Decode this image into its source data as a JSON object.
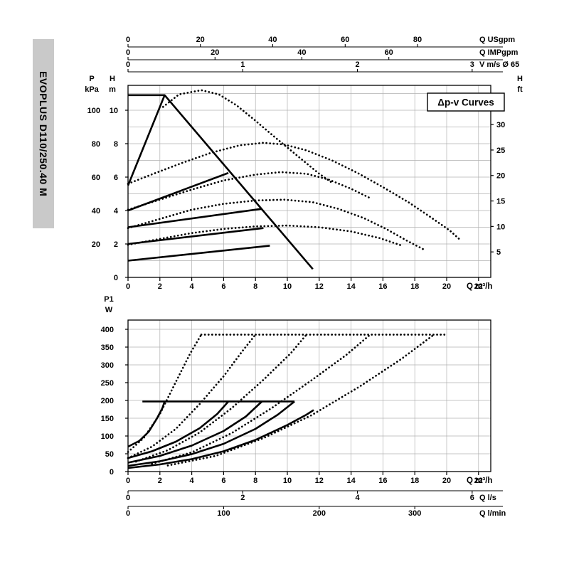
{
  "sidebar": {
    "model": "EVOPLUS D110/250.40 M"
  },
  "chart_data": [
    {
      "name": "head-flow-chart",
      "type": "line",
      "legend": {
        "label": "Δp-v Curves"
      },
      "xlim": [
        0,
        22.8
      ],
      "ylim": [
        0,
        11.5
      ],
      "grid": {
        "x_step": 2,
        "x_max": 22,
        "y_step": 1,
        "y_max": 11
      },
      "x_axis": {
        "title": "Q m³/h",
        "ticks": [
          [
            "0",
            0
          ],
          [
            "2",
            2
          ],
          [
            "4",
            4
          ],
          [
            "6",
            6
          ],
          [
            "8",
            8
          ],
          [
            "10",
            10
          ],
          [
            "12",
            12
          ],
          [
            "14",
            14
          ],
          [
            "16",
            16
          ],
          [
            "18",
            18
          ],
          [
            "20",
            20
          ],
          [
            "22",
            22
          ]
        ]
      },
      "left_axes": [
        {
          "title": [
            "P",
            "kPa"
          ],
          "ticks": [
            [
              "100",
              10
            ],
            [
              "80",
              8
            ],
            [
              "60",
              6
            ],
            [
              "40",
              4
            ],
            [
              "20",
              2
            ]
          ]
        },
        {
          "title": [
            "H",
            "m"
          ],
          "ticks": [
            [
              "10",
              10
            ],
            [
              "8",
              8
            ],
            [
              "6",
              6
            ],
            [
              "4",
              4
            ],
            [
              "2",
              2
            ],
            [
              "0",
              0
            ]
          ]
        }
      ],
      "right_axes": [
        {
          "title": [
            "H",
            "ft"
          ],
          "ticks": [
            [
              "30",
              9.144
            ],
            [
              "25",
              7.62
            ],
            [
              "20",
              6.096
            ],
            [
              "15",
              4.572
            ],
            [
              "10",
              3.048
            ],
            [
              "5",
              1.524
            ]
          ]
        }
      ],
      "aux_axes": [
        {
          "title": "Q USgpm",
          "ticks": [
            [
              "0",
              0
            ],
            [
              "20",
              4.54
            ],
            [
              "40",
              9.08
            ],
            [
              "60",
              13.63
            ],
            [
              "80",
              18.17
            ]
          ]
        },
        {
          "title": "Q IMPgpm",
          "ticks": [
            [
              "0",
              0
            ],
            [
              "20",
              5.46
            ],
            [
              "40",
              10.91
            ],
            [
              "60",
              16.37
            ]
          ]
        },
        {
          "title": "V m/s Ø 65",
          "ticks": [
            [
              "0",
              0
            ],
            [
              "1",
              7.2
            ],
            [
              "2",
              14.4
            ],
            [
              "3",
              21.6
            ]
          ]
        }
      ],
      "series": [
        {
          "name": "max-speed-curve",
          "style": "solid",
          "points": [
            [
              0,
              10.9
            ],
            [
              2.3,
              10.9
            ],
            [
              11.6,
              0.5
            ]
          ]
        },
        {
          "name": "dpv-setpoint-line-5",
          "style": "solid",
          "points": [
            [
              0,
              5.5
            ],
            [
              2.3,
              10.9
            ]
          ]
        },
        {
          "name": "dpv-setpoint-line-4",
          "style": "solid",
          "points": [
            [
              0,
              4.0
            ],
            [
              6.3,
              6.25
            ]
          ]
        },
        {
          "name": "dpv-setpoint-line-3",
          "style": "solid",
          "points": [
            [
              0,
              3.0
            ],
            [
              8.4,
              4.1
            ]
          ]
        },
        {
          "name": "dpv-setpoint-line-2",
          "style": "solid",
          "points": [
            [
              0,
              2.0
            ],
            [
              8.5,
              2.95
            ]
          ]
        },
        {
          "name": "dpv-setpoint-line-1",
          "style": "solid",
          "points": [
            [
              0,
              1.0
            ],
            [
              8.9,
              1.9
            ]
          ]
        },
        {
          "name": "speed-curve-dotted-1",
          "style": "dotted",
          "points": [
            [
              2.2,
              10.2
            ],
            [
              3.2,
              10.95
            ],
            [
              4.6,
              11.2
            ],
            [
              5.7,
              10.95
            ],
            [
              6.8,
              10.3
            ],
            [
              7.9,
              9.45
            ],
            [
              9.2,
              8.4
            ],
            [
              10.6,
              7.3
            ],
            [
              12.0,
              6.2
            ],
            [
              12.9,
              5.6
            ]
          ]
        },
        {
          "name": "speed-curve-dotted-2",
          "style": "dotted",
          "points": [
            [
              0,
              5.6
            ],
            [
              1.6,
              6.2
            ],
            [
              3.4,
              6.85
            ],
            [
              5.2,
              7.45
            ],
            [
              7.0,
              7.9
            ],
            [
              8.5,
              8.05
            ],
            [
              9.8,
              7.95
            ],
            [
              11.2,
              7.6
            ],
            [
              12.8,
              7.0
            ],
            [
              14.4,
              6.25
            ],
            [
              16.0,
              5.4
            ],
            [
              17.6,
              4.5
            ],
            [
              19.0,
              3.6
            ],
            [
              20.2,
              2.8
            ],
            [
              20.9,
              2.2
            ]
          ]
        },
        {
          "name": "speed-curve-dotted-3",
          "style": "dotted",
          "points": [
            [
              0,
              4.05
            ],
            [
              2,
              4.65
            ],
            [
              4,
              5.25
            ],
            [
              6,
              5.8
            ],
            [
              8,
              6.15
            ],
            [
              9.6,
              6.3
            ],
            [
              11.2,
              6.2
            ],
            [
              12.6,
              5.85
            ],
            [
              14.0,
              5.3
            ],
            [
              15.3,
              4.7
            ]
          ]
        },
        {
          "name": "speed-curve-dotted-4",
          "style": "dotted",
          "points": [
            [
              0,
              2.95
            ],
            [
              2,
              3.5
            ],
            [
              4,
              4.05
            ],
            [
              6,
              4.4
            ],
            [
              8,
              4.6
            ],
            [
              9.8,
              4.65
            ],
            [
              11.6,
              4.5
            ],
            [
              13.2,
              4.1
            ],
            [
              14.8,
              3.55
            ],
            [
              16.2,
              2.9
            ],
            [
              17.5,
              2.2
            ],
            [
              18.6,
              1.65
            ]
          ]
        },
        {
          "name": "speed-curve-dotted-5",
          "style": "dotted",
          "points": [
            [
              0,
              1.95
            ],
            [
              2,
              2.3
            ],
            [
              4,
              2.65
            ],
            [
              6,
              2.9
            ],
            [
              8,
              3.05
            ],
            [
              10,
              3.1
            ],
            [
              12,
              3.0
            ],
            [
              14,
              2.75
            ],
            [
              15.8,
              2.35
            ],
            [
              17.2,
              1.9
            ]
          ]
        }
      ]
    },
    {
      "name": "power-flow-chart",
      "type": "line",
      "xlim": [
        0,
        22.8
      ],
      "ylim": [
        0,
        425
      ],
      "grid": {
        "x_step": 2,
        "x_max": 22,
        "y_step": 50,
        "y_max": 400
      },
      "x_axis": {
        "title": "Q m³/h",
        "ticks": [
          [
            "0",
            0
          ],
          [
            "2",
            2
          ],
          [
            "4",
            4
          ],
          [
            "6",
            6
          ],
          [
            "8",
            8
          ],
          [
            "10",
            10
          ],
          [
            "12",
            12
          ],
          [
            "14",
            14
          ],
          [
            "16",
            16
          ],
          [
            "18",
            18
          ],
          [
            "20",
            20
          ],
          [
            "22",
            22
          ]
        ]
      },
      "left_axes": [
        {
          "title": [
            "P1",
            "W"
          ],
          "ticks": [
            [
              "400",
              400
            ],
            [
              "350",
              350
            ],
            [
              "300",
              300
            ],
            [
              "250",
              250
            ],
            [
              "200",
              200
            ],
            [
              "150",
              150
            ],
            [
              "100",
              100
            ],
            [
              "50",
              50
            ],
            [
              "0",
              0
            ]
          ]
        }
      ],
      "right_axes": [],
      "aux_axes": [
        {
          "title": "Q l/s",
          "ticks": [
            [
              "0",
              0
            ],
            [
              "2",
              7.2
            ],
            [
              "4",
              14.4
            ],
            [
              "6",
              21.6
            ]
          ]
        },
        {
          "title": "Q l/min",
          "ticks": [
            [
              "0",
              0
            ],
            [
              "100",
              6
            ],
            [
              "200",
              12
            ],
            [
              "300",
              18
            ]
          ]
        }
      ],
      "series": [
        {
          "name": "power-limit-line",
          "style": "solid",
          "points": [
            [
              0.9,
              197
            ],
            [
              10.45,
              197
            ]
          ]
        },
        {
          "name": "power-curve-set5",
          "style": "solid",
          "points": [
            [
              0,
              70
            ],
            [
              0.7,
              86
            ],
            [
              1.3,
              112
            ],
            [
              1.8,
              148
            ],
            [
              2.15,
              178
            ],
            [
              2.3,
              197
            ]
          ]
        },
        {
          "name": "power-curve-set4",
          "style": "solid",
          "points": [
            [
              0,
              38
            ],
            [
              1.5,
              57
            ],
            [
              3,
              84
            ],
            [
              4.5,
              122
            ],
            [
              5.6,
              162
            ],
            [
              6.3,
              197
            ]
          ]
        },
        {
          "name": "power-curve-set3",
          "style": "solid",
          "points": [
            [
              0,
              25
            ],
            [
              2,
              44
            ],
            [
              4,
              73
            ],
            [
              6,
              114
            ],
            [
              7.4,
              155
            ],
            [
              8.4,
              197
            ]
          ]
        },
        {
          "name": "power-curve-set2",
          "style": "solid",
          "points": [
            [
              0,
              16
            ],
            [
              2,
              29
            ],
            [
              4,
              49
            ],
            [
              6,
              78
            ],
            [
              8,
              120
            ],
            [
              9.4,
              160
            ],
            [
              10.45,
              197
            ]
          ]
        },
        {
          "name": "power-curve-max",
          "style": "solid",
          "points": [
            [
              0,
              10
            ],
            [
              2,
              20
            ],
            [
              4,
              35
            ],
            [
              6,
              57
            ],
            [
              8,
              89
            ],
            [
              10,
              131
            ],
            [
              11.2,
              160
            ],
            [
              11.65,
              173
            ]
          ]
        },
        {
          "name": "max-power-plateau-dotted",
          "style": "dotted",
          "points": [
            [
              4.6,
              385
            ],
            [
              19.9,
              385
            ]
          ]
        },
        {
          "name": "power-dotted-1",
          "style": "dotted",
          "points": [
            [
              0,
              55
            ],
            [
              1,
              95
            ],
            [
              2,
              162
            ],
            [
              3,
              252
            ],
            [
              3.9,
              332
            ],
            [
              4.6,
              385
            ]
          ]
        },
        {
          "name": "power-dotted-2",
          "style": "dotted",
          "points": [
            [
              0,
              38
            ],
            [
              1.5,
              70
            ],
            [
              3,
              120
            ],
            [
              4.5,
              190
            ],
            [
              6,
              268
            ],
            [
              7.2,
              340
            ],
            [
              8.0,
              385
            ]
          ]
        },
        {
          "name": "power-dotted-3",
          "style": "dotted",
          "points": [
            [
              0.5,
              28
            ],
            [
              2.5,
              60
            ],
            [
              4.5,
              110
            ],
            [
              6.5,
              178
            ],
            [
              8.5,
              258
            ],
            [
              10.2,
              332
            ],
            [
              11.2,
              385
            ]
          ]
        },
        {
          "name": "power-dotted-4",
          "style": "dotted",
          "points": [
            [
              1.5,
              22
            ],
            [
              4,
              54
            ],
            [
              6.5,
              108
            ],
            [
              9,
              178
            ],
            [
              11.5,
              256
            ],
            [
              13.7,
              328
            ],
            [
              15.2,
              385
            ]
          ]
        },
        {
          "name": "power-dotted-5",
          "style": "dotted",
          "points": [
            [
              2.5,
              17
            ],
            [
              5.5,
              44
            ],
            [
              8.5,
              94
            ],
            [
              11.5,
              158
            ],
            [
              14.5,
              238
            ],
            [
              17.2,
              318
            ],
            [
              19.2,
              385
            ]
          ]
        }
      ]
    }
  ]
}
